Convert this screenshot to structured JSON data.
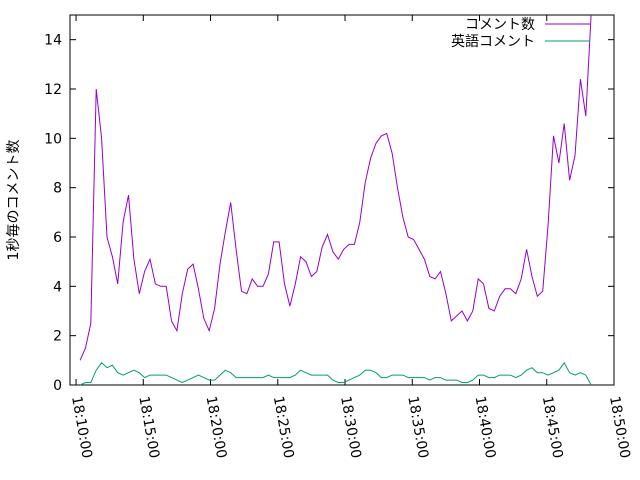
{
  "chart_data": {
    "type": "line",
    "ylabel": "1秒毎のコメント数",
    "x": [
      "18:10:18",
      "18:10:42",
      "18:11:06",
      "18:11:30",
      "18:11:54",
      "18:12:18",
      "18:12:42",
      "18:13:06",
      "18:13:30",
      "18:13:54",
      "18:14:18",
      "18:14:42",
      "18:15:06",
      "18:15:30",
      "18:15:54",
      "18:16:18",
      "18:16:42",
      "18:17:06",
      "18:17:30",
      "18:17:54",
      "18:18:18",
      "18:18:42",
      "18:19:06",
      "18:19:30",
      "18:19:54",
      "18:20:18",
      "18:20:42",
      "18:21:06",
      "18:21:30",
      "18:21:54",
      "18:22:18",
      "18:22:42",
      "18:23:06",
      "18:23:30",
      "18:23:54",
      "18:24:18",
      "18:24:42",
      "18:25:06",
      "18:25:30",
      "18:25:54",
      "18:26:18",
      "18:26:42",
      "18:27:06",
      "18:27:30",
      "18:27:54",
      "18:28:18",
      "18:28:42",
      "18:29:06",
      "18:29:30",
      "18:29:54",
      "18:30:18",
      "18:30:42",
      "18:31:06",
      "18:31:30",
      "18:31:54",
      "18:32:18",
      "18:32:42",
      "18:33:06",
      "18:33:30",
      "18:33:54",
      "18:34:18",
      "18:34:42",
      "18:35:06",
      "18:35:30",
      "18:35:54",
      "18:36:18",
      "18:36:42",
      "18:37:06",
      "18:37:30",
      "18:37:54",
      "18:38:18",
      "18:38:42",
      "18:39:06",
      "18:39:30",
      "18:39:54",
      "18:40:18",
      "18:40:42",
      "18:41:06",
      "18:41:30",
      "18:41:54",
      "18:42:18",
      "18:42:42",
      "18:43:06",
      "18:43:30",
      "18:43:54",
      "18:44:18",
      "18:44:42",
      "18:45:06",
      "18:45:30",
      "18:45:54",
      "18:46:18",
      "18:46:42",
      "18:47:06",
      "18:47:30",
      "18:47:54",
      "18:48:18"
    ],
    "series": [
      {
        "name": "コメント数",
        "color": "#9400d3",
        "values": [
          1.0,
          1.5,
          2.5,
          12.0,
          10.0,
          6.0,
          5.2,
          4.1,
          6.6,
          7.7,
          5.1,
          3.7,
          4.6,
          5.1,
          4.1,
          4.0,
          4.0,
          2.6,
          2.2,
          3.7,
          4.7,
          4.9,
          3.9,
          2.7,
          2.2,
          3.1,
          4.9,
          6.2,
          7.4,
          5.5,
          3.8,
          3.7,
          4.3,
          4.0,
          4.0,
          4.5,
          5.8,
          5.8,
          4.1,
          3.2,
          4.1,
          5.2,
          5.0,
          4.4,
          4.6,
          5.6,
          6.1,
          5.4,
          5.1,
          5.5,
          5.7,
          5.7,
          6.6,
          8.2,
          9.2,
          9.8,
          10.1,
          10.2,
          9.4,
          8.0,
          6.8,
          6.0,
          5.9,
          5.5,
          5.1,
          4.4,
          4.3,
          4.6,
          3.7,
          2.6,
          2.8,
          3.0,
          2.6,
          3.0,
          4.3,
          4.1,
          3.1,
          3.0,
          3.6,
          3.9,
          3.9,
          3.7,
          4.3,
          5.5,
          4.4,
          3.6,
          3.8,
          6.5,
          10.1,
          9.0,
          10.6,
          8.3,
          9.3,
          12.4,
          10.9,
          15.0
        ]
      },
      {
        "name": "英語コメント",
        "color": "#009e73",
        "values": [
          0,
          0.1,
          0.1,
          0.6,
          0.9,
          0.7,
          0.8,
          0.5,
          0.4,
          0.5,
          0.6,
          0.5,
          0.3,
          0.4,
          0.4,
          0.4,
          0.4,
          0.3,
          0.2,
          0.1,
          0.2,
          0.3,
          0.4,
          0.3,
          0.2,
          0.2,
          0.4,
          0.6,
          0.5,
          0.3,
          0.3,
          0.3,
          0.3,
          0.3,
          0.3,
          0.4,
          0.3,
          0.3,
          0.3,
          0.3,
          0.4,
          0.6,
          0.5,
          0.4,
          0.4,
          0.4,
          0.4,
          0.2,
          0.1,
          0.1,
          0.2,
          0.3,
          0.4,
          0.6,
          0.6,
          0.5,
          0.3,
          0.3,
          0.4,
          0.4,
          0.4,
          0.3,
          0.3,
          0.3,
          0.3,
          0.2,
          0.3,
          0.3,
          0.2,
          0.2,
          0.2,
          0.1,
          0.1,
          0.2,
          0.4,
          0.4,
          0.3,
          0.3,
          0.4,
          0.4,
          0.4,
          0.3,
          0.4,
          0.6,
          0.7,
          0.5,
          0.5,
          0.4,
          0.5,
          0.6,
          0.9,
          0.5,
          0.4,
          0.5,
          0.4,
          0.0
        ]
      }
    ],
    "xlim": [
      "18:09:33",
      "18:50:00"
    ],
    "xticks": [
      "18:10:00",
      "18:15:00",
      "18:20:00",
      "18:25:00",
      "18:30:00",
      "18:35:00",
      "18:40:00",
      "18:45:00",
      "18:50:00"
    ],
    "ylim": [
      0,
      15
    ],
    "yticks": [
      0,
      2,
      4,
      6,
      8,
      10,
      12,
      14
    ],
    "legend": "top-right"
  }
}
